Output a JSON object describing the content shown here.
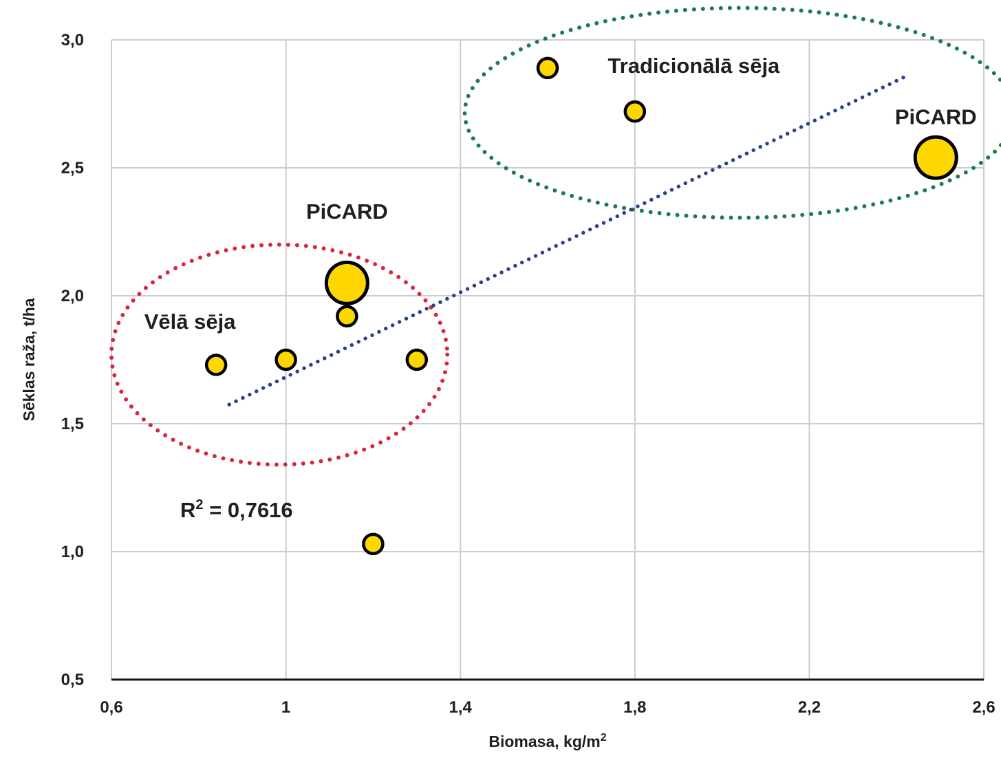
{
  "chart_data": {
    "type": "scatter",
    "xlabel": "Biomasa, kg/m",
    "xlabel_sup": "2",
    "ylabel": "Sēklas raža, t/ha",
    "xlim": [
      0.6,
      2.6
    ],
    "ylim": [
      0.5,
      3.0
    ],
    "x_ticks": [
      0.6,
      1.0,
      1.4,
      1.8,
      2.2,
      2.6
    ],
    "x_tick_labels": [
      "0,6",
      "1",
      "1,4",
      "1,8",
      "2,2",
      "2,6"
    ],
    "y_ticks": [
      0.5,
      1.0,
      1.5,
      2.0,
      2.5,
      3.0
    ],
    "y_tick_labels": [
      "0,5",
      "1,0",
      "1,5",
      "2,0",
      "2,5",
      "3,0"
    ],
    "grid": true,
    "legend": "none",
    "point_color": "#FFD700",
    "point_edge_color": "#000000",
    "points": [
      {
        "x": 0.84,
        "y": 1.73,
        "size": "small"
      },
      {
        "x": 1.0,
        "y": 1.75,
        "size": "small"
      },
      {
        "x": 1.14,
        "y": 2.05,
        "size": "large"
      },
      {
        "x": 1.14,
        "y": 1.92,
        "size": "small"
      },
      {
        "x": 1.3,
        "y": 1.75,
        "size": "small"
      },
      {
        "x": 1.2,
        "y": 1.03,
        "size": "small"
      },
      {
        "x": 1.6,
        "y": 2.89,
        "size": "small"
      },
      {
        "x": 1.8,
        "y": 2.72,
        "size": "small"
      },
      {
        "x": 2.49,
        "y": 2.54,
        "size": "large"
      }
    ],
    "trendline": {
      "type": "linear",
      "style": "dotted",
      "color": "#2E3F8F",
      "from": {
        "x": 0.87,
        "y": 1.575
      },
      "to": {
        "x": 2.43,
        "y": 2.865
      },
      "r2_label": "R",
      "r2_sup": "2",
      "r2_value": " = 0,7616"
    },
    "groups": [
      {
        "label": "Vēlā sēja",
        "color": "#D7263D",
        "style": "dotted",
        "cx": 0.985,
        "cy": 1.77,
        "rx": 0.385,
        "ry": 0.43
      },
      {
        "label": "Tradicionālā sēja",
        "color": "#1E7B4A",
        "style": "dotted",
        "cx": 2.04,
        "cy": 2.715,
        "rx": 0.63,
        "ry": 0.41
      }
    ],
    "annotations": [
      {
        "text": "PiCARD",
        "x": 1.14,
        "y": 2.33
      },
      {
        "text": "PiCARD",
        "x": 2.49,
        "y": 2.7
      },
      {
        "text": "Vēlā sēja",
        "x": 0.78,
        "y": 1.9
      },
      {
        "text": "Tradicionālā sēja",
        "x": 1.935,
        "y": 2.9
      }
    ]
  }
}
